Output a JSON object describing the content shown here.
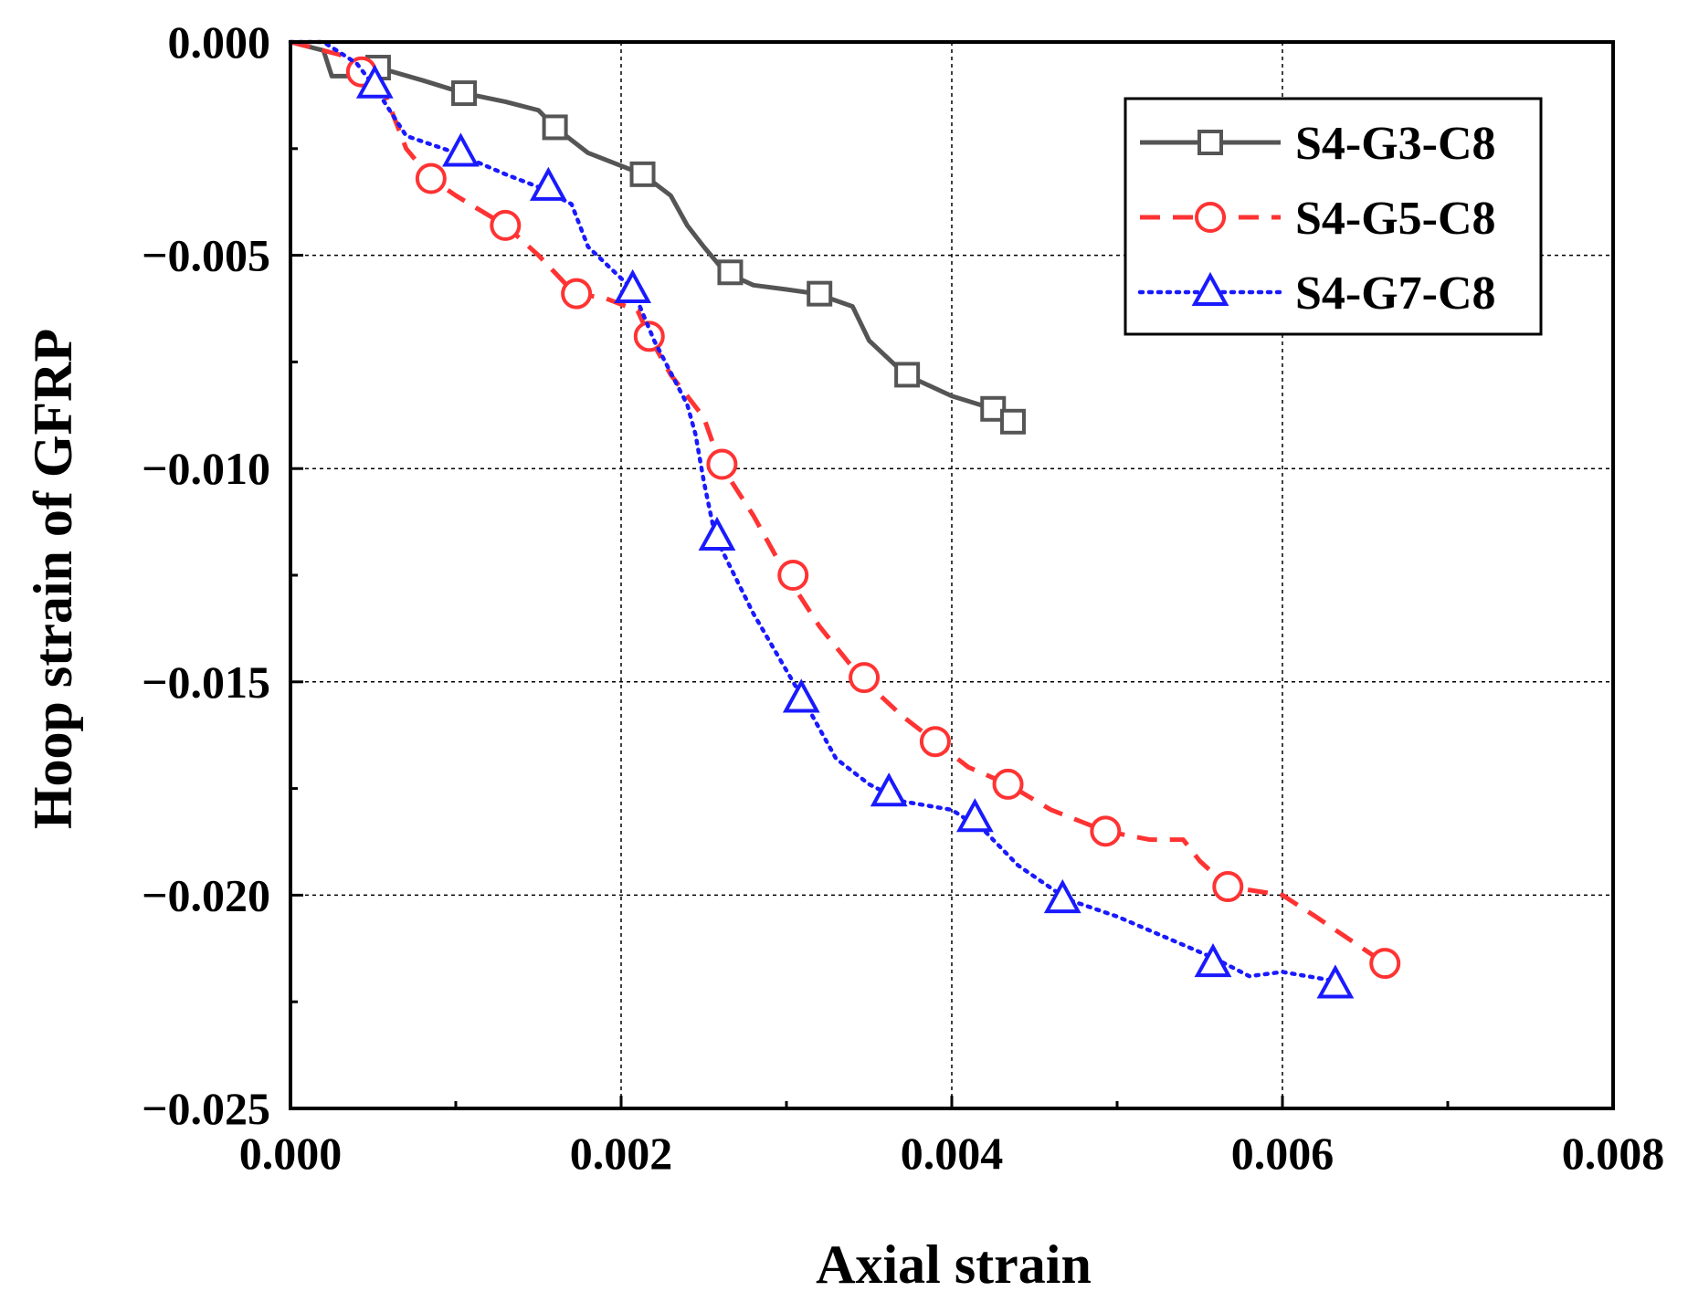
{
  "chart_data": {
    "type": "line",
    "xlabel": "Axial strain",
    "ylabel": "Hoop strain of GFRP",
    "xlim": [
      0,
      0.008
    ],
    "ylim": [
      -0.025,
      0
    ],
    "xticks": [
      0,
      0.002,
      0.004,
      0.006,
      0.008
    ],
    "xtick_labels": [
      "0.000",
      "0.002",
      "0.004",
      "0.006",
      "0.008"
    ],
    "yticks": [
      0,
      -0.005,
      -0.01,
      -0.015,
      -0.02,
      -0.025
    ],
    "ytick_labels": [
      "0.000",
      "−0.005",
      "−0.010",
      "−0.015",
      "−0.020",
      "−0.025"
    ],
    "grid": true,
    "legend_position": "top-right",
    "series": [
      {
        "name": "S4-G3-C8",
        "color": "#555555",
        "line_style": "solid",
        "marker": "square",
        "x": [
          0,
          0.0002,
          0.00025,
          0.0004,
          0.00053,
          0.0008,
          0.00105,
          0.0013,
          0.0015,
          0.0016,
          0.0018,
          0.00213,
          0.0023,
          0.0024,
          0.0025,
          0.00263,
          0.0028,
          0.003,
          0.00318,
          0.0034,
          0.0035,
          0.00372,
          0.004,
          0.00425,
          0.00435
        ],
        "y": [
          0,
          -0.0002,
          -0.0008,
          -0.0008,
          -0.0006,
          -0.0009,
          -0.0012,
          -0.0014,
          -0.0016,
          -0.002,
          -0.0026,
          -0.0031,
          -0.0036,
          -0.0043,
          -0.0048,
          -0.0054,
          -0.0057,
          -0.0058,
          -0.0059,
          -0.0062,
          -0.007,
          -0.0078,
          -0.0083,
          -0.0086,
          -0.0089
        ],
        "marker_x": [
          0.00053,
          0.00105,
          0.0016,
          0.00213,
          0.00266,
          0.0032,
          0.00373,
          0.00425,
          0.00437
        ],
        "marker_y": [
          -0.0006,
          -0.0012,
          -0.002,
          -0.0031,
          -0.0054,
          -0.0059,
          -0.0078,
          -0.0086,
          -0.0089
        ]
      },
      {
        "name": "S4-G5-C8",
        "color": "#ff3333",
        "line_style": "dashed",
        "marker": "circle",
        "x": [
          0,
          0.0003,
          0.00043,
          0.00055,
          0.0007,
          0.00085,
          0.001,
          0.0013,
          0.0015,
          0.00172,
          0.0019,
          0.0021,
          0.00217,
          0.0023,
          0.0025,
          0.0026,
          0.0028,
          0.003,
          0.0032,
          0.00345,
          0.0037,
          0.0039,
          0.0041,
          0.00434,
          0.0046,
          0.00493,
          0.0052,
          0.0054,
          0.0055,
          0.00567,
          0.006,
          0.0062,
          0.00662
        ],
        "y": [
          0,
          -0.0003,
          -0.0007,
          -0.001,
          -0.0025,
          -0.0032,
          -0.0036,
          -0.0043,
          -0.005,
          -0.0059,
          -0.006,
          -0.0063,
          -0.0069,
          -0.0078,
          -0.0088,
          -0.0099,
          -0.0111,
          -0.0125,
          -0.0137,
          -0.0149,
          -0.0158,
          -0.0164,
          -0.017,
          -0.0174,
          -0.018,
          -0.0185,
          -0.0187,
          -0.0187,
          -0.0192,
          -0.0198,
          -0.02,
          -0.0205,
          -0.0216
        ],
        "marker_x": [
          0.00043,
          0.00085,
          0.0013,
          0.00173,
          0.00217,
          0.00261,
          0.00304,
          0.00347,
          0.0039,
          0.00434,
          0.00493,
          0.00567,
          0.00662
        ],
        "marker_y": [
          -0.0007,
          -0.0032,
          -0.0043,
          -0.0059,
          -0.0069,
          -0.0099,
          -0.0125,
          -0.0149,
          -0.0164,
          -0.0174,
          -0.0185,
          -0.0198,
          -0.0216
        ]
      },
      {
        "name": "S4-G7-C8",
        "color": "#1a1aff",
        "line_style": "dotted",
        "marker": "triangle",
        "x": [
          0,
          0.0002,
          0.0004,
          0.0005,
          0.0007,
          0.001,
          0.0013,
          0.0015,
          0.0017,
          0.0018,
          0.00207,
          0.0022,
          0.0024,
          0.00245,
          0.0025,
          0.00257,
          0.0028,
          0.0031,
          0.0033,
          0.0035,
          0.0037,
          0.004,
          0.0042,
          0.0044,
          0.0047,
          0.005,
          0.0053,
          0.0056,
          0.0058,
          0.006,
          0.0063
        ],
        "y": [
          0,
          0,
          -0.0005,
          -0.001,
          -0.0022,
          -0.0026,
          -0.0031,
          -0.0034,
          -0.0038,
          -0.0048,
          -0.0058,
          -0.007,
          -0.0085,
          -0.0092,
          -0.0103,
          -0.0116,
          -0.0134,
          -0.0154,
          -0.0168,
          -0.0174,
          -0.0178,
          -0.018,
          -0.0185,
          -0.0193,
          -0.0201,
          -0.0205,
          -0.021,
          -0.0215,
          -0.0219,
          -0.0218,
          -0.022
        ],
        "marker_x": [
          0.00051,
          0.00103,
          0.00156,
          0.00207,
          0.00258,
          0.00309,
          0.00362,
          0.00414,
          0.00467,
          0.00558,
          0.00632
        ],
        "marker_y": [
          -0.001,
          -0.0026,
          -0.0034,
          -0.0058,
          -0.0116,
          -0.0154,
          -0.0176,
          -0.0182,
          -0.0201,
          -0.0216,
          -0.0221
        ]
      }
    ]
  }
}
